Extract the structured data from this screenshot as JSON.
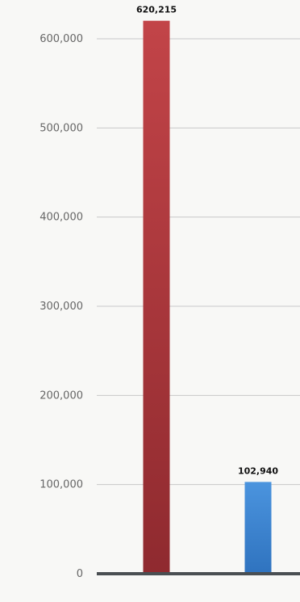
{
  "chart_data": {
    "type": "bar",
    "categories": [
      "",
      ""
    ],
    "values": [
      620215,
      102940
    ],
    "value_labels": [
      "620,215",
      "102,940"
    ],
    "bar_colors": [
      "#b23a3f",
      "#3f88d4"
    ],
    "xlabel": "",
    "ylabel": "",
    "ylim": [
      0,
      600000
    ],
    "yticks": [
      0,
      100000,
      200000,
      300000,
      400000,
      500000,
      600000
    ],
    "ytick_labels": [
      "0",
      "100,000",
      "200,000",
      "300,000",
      "400,000",
      "500,000",
      "600,000"
    ],
    "grid": true
  }
}
